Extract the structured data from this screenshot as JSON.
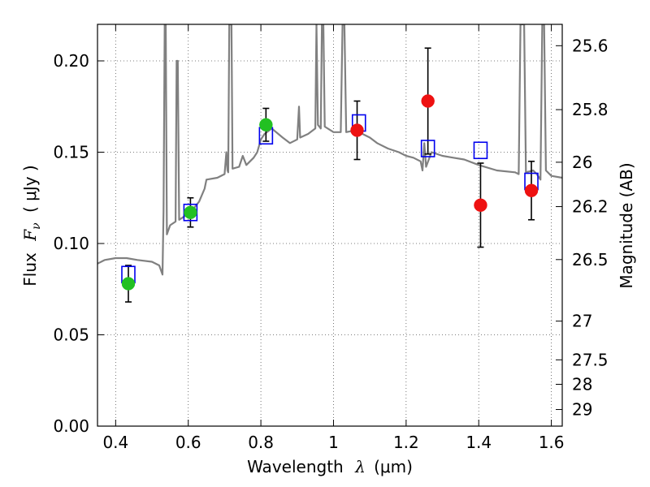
{
  "chart_data": {
    "type": "scatter",
    "title": "",
    "xlabel": "Wavelength",
    "xlabel_symbol": "λ",
    "xlabel_unit": "(μm)",
    "ylabel": "Flux",
    "ylabel_symbol": "F",
    "ylabel_subscript": "ν",
    "ylabel_unit": "( μJy )",
    "y2label": "Magnitude (AB)",
    "xlim": [
      0.35,
      1.63
    ],
    "ylim": [
      0.0,
      0.22
    ],
    "grid": true,
    "x_ticks": [
      0.4,
      0.6,
      0.8,
      1.0,
      1.2,
      1.4,
      1.6
    ],
    "x_tick_labels": [
      "0.4",
      "0.6",
      "0.8",
      "1",
      "1.2",
      "1.4",
      "1.6"
    ],
    "y_ticks": [
      0.0,
      0.05,
      0.1,
      0.15,
      0.2
    ],
    "y_tick_labels": [
      "0.00",
      "0.05",
      "0.10",
      "0.15",
      "0.20"
    ],
    "mag_ticks": [
      {
        "label": "25.6",
        "flux": 0.2083
      },
      {
        "label": "25.8",
        "flux": 0.1733
      },
      {
        "label": "26",
        "flux": 0.1445
      },
      {
        "label": "26.2",
        "flux": 0.1202
      },
      {
        "label": "26.5",
        "flux": 0.0912
      },
      {
        "label": "27",
        "flux": 0.0575
      },
      {
        "label": "27.5",
        "flux": 0.0363
      },
      {
        "label": "28",
        "flux": 0.0229
      },
      {
        "label": "29",
        "flux": 0.0091
      }
    ],
    "model_spectrum": {
      "color": "#808080",
      "points": [
        [
          0.35,
          0.089
        ],
        [
          0.37,
          0.091
        ],
        [
          0.4,
          0.092
        ],
        [
          0.43,
          0.092
        ],
        [
          0.46,
          0.091
        ],
        [
          0.5,
          0.09
        ],
        [
          0.52,
          0.088
        ],
        [
          0.529,
          0.083
        ],
        [
          0.532,
          0.118
        ],
        [
          0.535,
          0.22
        ],
        [
          0.538,
          0.22
        ],
        [
          0.541,
          0.105
        ],
        [
          0.55,
          0.11
        ],
        [
          0.565,
          0.112
        ],
        [
          0.568,
          0.2
        ],
        [
          0.571,
          0.2
        ],
        [
          0.575,
          0.113
        ],
        [
          0.59,
          0.115
        ],
        [
          0.61,
          0.118
        ],
        [
          0.63,
          0.123
        ],
        [
          0.645,
          0.13
        ],
        [
          0.65,
          0.135
        ],
        [
          0.68,
          0.136
        ],
        [
          0.7,
          0.138
        ],
        [
          0.705,
          0.15
        ],
        [
          0.708,
          0.14
        ],
        [
          0.71,
          0.139
        ],
        [
          0.713,
          0.22
        ],
        [
          0.719,
          0.22
        ],
        [
          0.722,
          0.141
        ],
        [
          0.74,
          0.142
        ],
        [
          0.75,
          0.148
        ],
        [
          0.76,
          0.143
        ],
        [
          0.78,
          0.147
        ],
        [
          0.79,
          0.15
        ],
        [
          0.8,
          0.157
        ],
        [
          0.81,
          0.16
        ],
        [
          0.83,
          0.163
        ],
        [
          0.86,
          0.158
        ],
        [
          0.88,
          0.155
        ],
        [
          0.9,
          0.157
        ],
        [
          0.905,
          0.175
        ],
        [
          0.908,
          0.158
        ],
        [
          0.93,
          0.16
        ],
        [
          0.95,
          0.163
        ],
        [
          0.953,
          0.22
        ],
        [
          0.957,
          0.165
        ],
        [
          0.965,
          0.163
        ],
        [
          0.968,
          0.22
        ],
        [
          0.972,
          0.22
        ],
        [
          0.976,
          0.164
        ],
        [
          1.0,
          0.161
        ],
        [
          1.02,
          0.161
        ],
        [
          1.025,
          0.22
        ],
        [
          1.03,
          0.22
        ],
        [
          1.035,
          0.161
        ],
        [
          1.06,
          0.162
        ],
        [
          1.08,
          0.16
        ],
        [
          1.1,
          0.158
        ],
        [
          1.12,
          0.155
        ],
        [
          1.15,
          0.152
        ],
        [
          1.18,
          0.15
        ],
        [
          1.2,
          0.148
        ],
        [
          1.22,
          0.147
        ],
        [
          1.24,
          0.145
        ],
        [
          1.245,
          0.14
        ],
        [
          1.25,
          0.155
        ],
        [
          1.255,
          0.142
        ],
        [
          1.27,
          0.15
        ],
        [
          1.3,
          0.148
        ],
        [
          1.33,
          0.147
        ],
        [
          1.36,
          0.146
        ],
        [
          1.4,
          0.143
        ],
        [
          1.45,
          0.14
        ],
        [
          1.5,
          0.139
        ],
        [
          1.51,
          0.138
        ],
        [
          1.515,
          0.22
        ],
        [
          1.525,
          0.22
        ],
        [
          1.53,
          0.139
        ],
        [
          1.55,
          0.14
        ],
        [
          1.56,
          0.138
        ],
        [
          1.57,
          0.135
        ],
        [
          1.575,
          0.22
        ],
        [
          1.58,
          0.22
        ],
        [
          1.585,
          0.14
        ],
        [
          1.6,
          0.137
        ],
        [
          1.63,
          0.136
        ]
      ]
    },
    "series": [
      {
        "marker": "circle",
        "color": "#22c022",
        "points": [
          {
            "x": 0.435,
            "y": 0.078,
            "err": 0.01
          },
          {
            "x": 0.606,
            "y": 0.117,
            "err": 0.008
          },
          {
            "x": 0.814,
            "y": 0.165,
            "err": 0.009
          }
        ]
      },
      {
        "marker": "circle",
        "color": "#ee1111",
        "points": [
          {
            "x": 1.065,
            "y": 0.162,
            "err": 0.016
          },
          {
            "x": 1.26,
            "y": 0.178,
            "err": 0.029
          },
          {
            "x": 1.405,
            "y": 0.121,
            "err": 0.023
          },
          {
            "x": 1.545,
            "y": 0.129,
            "err": 0.016
          }
        ]
      },
      {
        "marker": "open-square",
        "color": "#0000ee",
        "points": [
          {
            "x": 0.435,
            "y": 0.083
          },
          {
            "x": 0.606,
            "y": 0.117
          },
          {
            "x": 0.814,
            "y": 0.159
          },
          {
            "x": 1.07,
            "y": 0.166
          },
          {
            "x": 1.26,
            "y": 0.152
          },
          {
            "x": 1.405,
            "y": 0.151
          },
          {
            "x": 1.545,
            "y": 0.134
          }
        ]
      }
    ]
  }
}
